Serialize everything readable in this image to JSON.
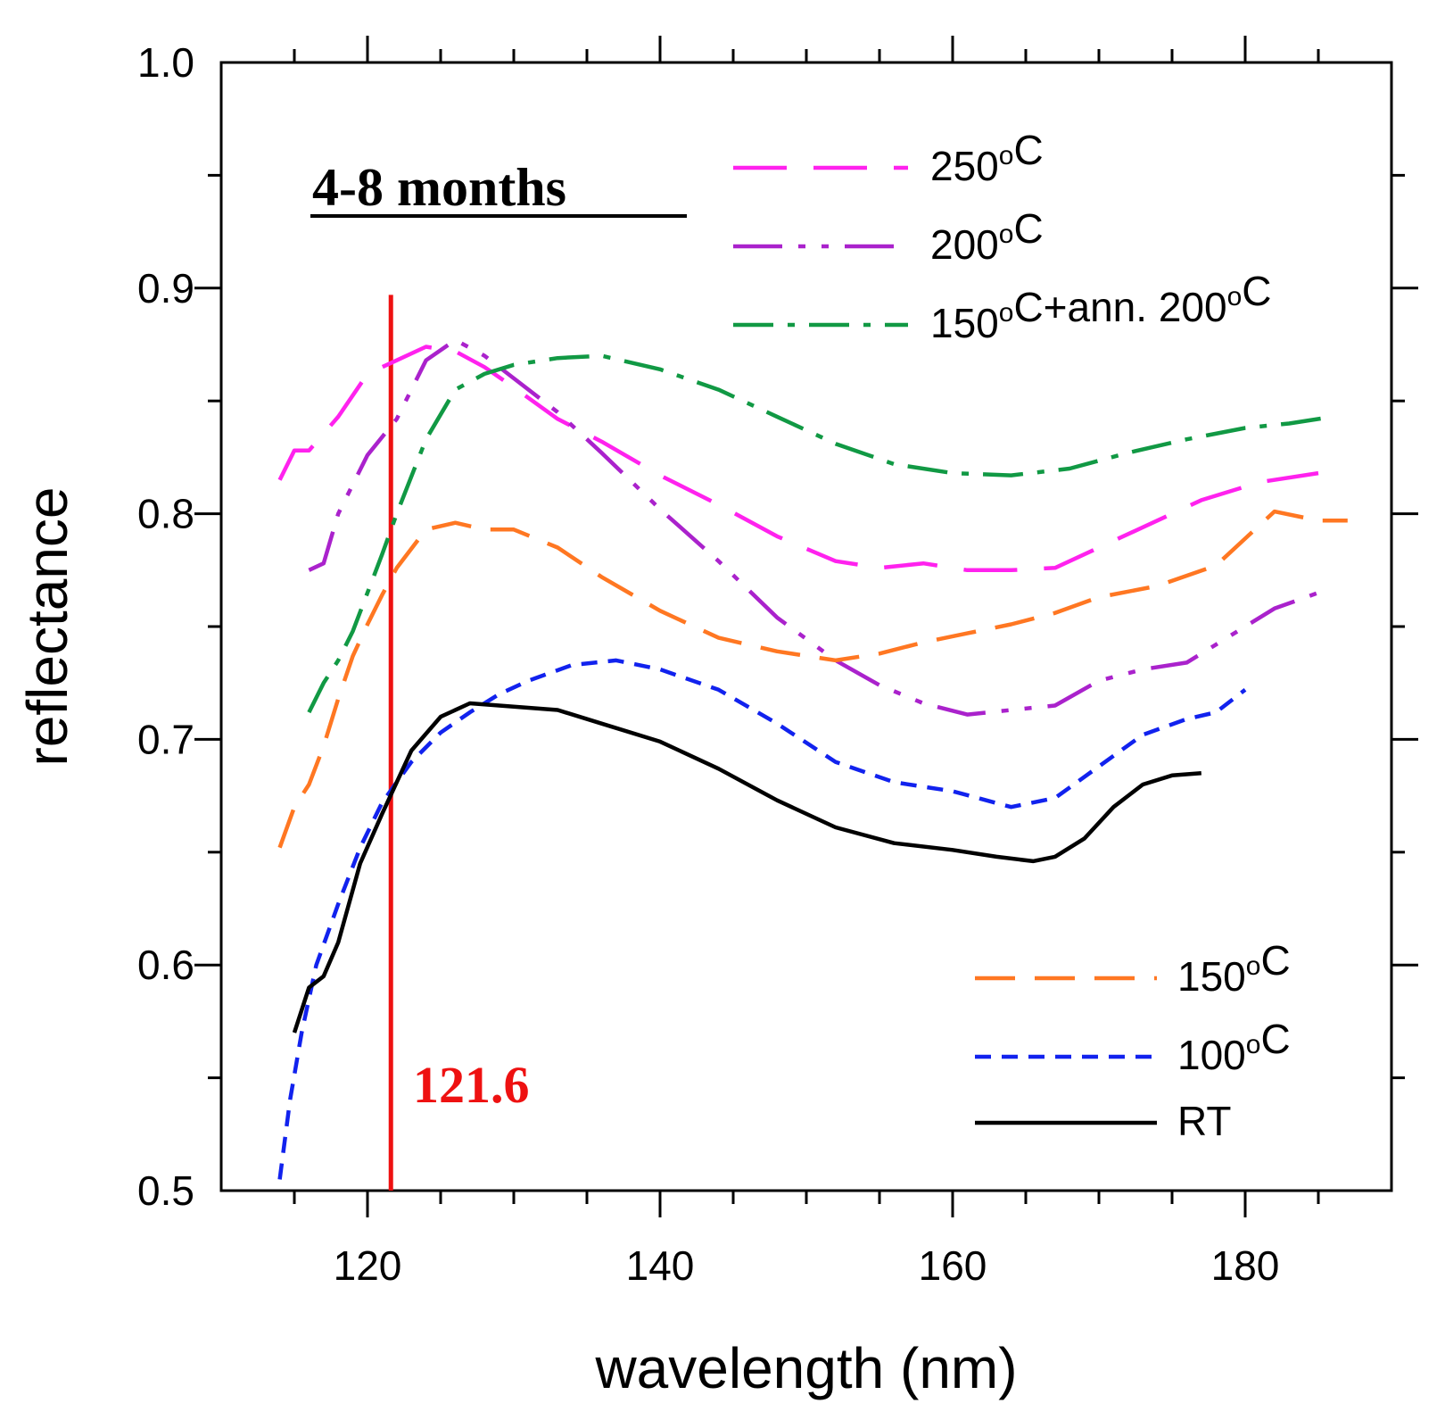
{
  "chart_data": {
    "type": "line",
    "title": "",
    "xlabel": "wavelength (nm)",
    "ylabel": "reflectance",
    "xlim": [
      110,
      190
    ],
    "ylim": [
      0.5,
      1.0
    ],
    "x_ticks": [
      120,
      140,
      160,
      180
    ],
    "y_ticks": [
      0.5,
      0.6,
      0.7,
      0.8,
      0.9,
      1.0
    ],
    "x_tick_labels": [
      "120",
      "140",
      "160",
      "180"
    ],
    "y_tick_labels": [
      "0.5",
      "0.6",
      "0.7",
      "0.8",
      "0.9",
      "1.0"
    ],
    "annotation": "4-8 months",
    "marker": {
      "x": 121.6,
      "label": "121.6",
      "color": "#ee1111",
      "y_top": 0.897
    },
    "series": [
      {
        "name": "250",
        "legend_main": "250",
        "legend_sup": "o",
        "legend_tail": "C",
        "color": "#ff22ee",
        "dash": "60,30",
        "x": [
          114,
          115,
          116,
          118,
          120,
          122,
          124,
          126,
          128,
          130,
          133,
          136,
          140,
          144,
          148,
          152,
          155,
          158,
          161,
          164,
          167,
          170,
          173,
          177,
          181,
          185
        ],
        "y": [
          0.815,
          0.828,
          0.828,
          0.843,
          0.862,
          0.868,
          0.874,
          0.872,
          0.865,
          0.856,
          0.842,
          0.832,
          0.817,
          0.804,
          0.79,
          0.779,
          0.776,
          0.778,
          0.775,
          0.775,
          0.776,
          0.785,
          0.794,
          0.806,
          0.814,
          0.818
        ]
      },
      {
        "name": "200",
        "legend_main": "200",
        "legend_sup": "o",
        "legend_tail": "C",
        "color": "#aa22cc",
        "dash": "55,18,8,18,8,18",
        "x": [
          116,
          117,
          118,
          120,
          122,
          124,
          126,
          128,
          130,
          133,
          136,
          140,
          144,
          148,
          152,
          155,
          158,
          161,
          164,
          167,
          170,
          173,
          176,
          179,
          182,
          185
        ],
        "y": [
          0.775,
          0.778,
          0.8,
          0.826,
          0.842,
          0.868,
          0.877,
          0.87,
          0.86,
          0.845,
          0.827,
          0.802,
          0.779,
          0.754,
          0.735,
          0.724,
          0.716,
          0.711,
          0.713,
          0.715,
          0.726,
          0.731,
          0.734,
          0.746,
          0.758,
          0.765
        ]
      },
      {
        "name": "150+ann",
        "legend_main": "150",
        "legend_sup": "o",
        "legend_tail": "C+ann. 200",
        "legend_sup2": "o",
        "legend_tail2": "C",
        "color": "#119944",
        "dash": "45,16,8,16",
        "x": [
          116,
          117,
          118,
          119,
          120,
          121,
          122,
          124,
          126,
          128,
          130,
          133,
          136,
          140,
          144,
          148,
          152,
          156,
          160,
          164,
          168,
          172,
          176,
          180,
          183,
          186
        ],
        "y": [
          0.712,
          0.725,
          0.735,
          0.748,
          0.765,
          0.782,
          0.8,
          0.833,
          0.855,
          0.862,
          0.866,
          0.869,
          0.87,
          0.864,
          0.855,
          0.843,
          0.831,
          0.822,
          0.818,
          0.817,
          0.82,
          0.827,
          0.833,
          0.838,
          0.84,
          0.843
        ]
      },
      {
        "name": "150",
        "legend_main": "150",
        "legend_sup": "o",
        "legend_tail": "C",
        "color": "#ff7722",
        "dash": "45,22",
        "x": [
          114,
          115,
          116,
          117,
          118,
          119,
          120,
          121,
          122,
          124,
          126,
          128,
          130,
          133,
          136,
          140,
          144,
          148,
          152,
          155,
          158,
          161,
          164,
          167,
          170,
          174,
          178,
          180,
          182,
          185,
          187
        ],
        "y": [
          0.652,
          0.67,
          0.68,
          0.697,
          0.718,
          0.737,
          0.751,
          0.764,
          0.776,
          0.793,
          0.796,
          0.793,
          0.793,
          0.785,
          0.772,
          0.757,
          0.745,
          0.739,
          0.735,
          0.738,
          0.743,
          0.747,
          0.751,
          0.756,
          0.763,
          0.768,
          0.777,
          0.789,
          0.801,
          0.797,
          0.797
        ]
      },
      {
        "name": "100",
        "legend_main": "100",
        "legend_sup": "o",
        "legend_tail": "C",
        "color": "#1122ee",
        "dash": "18,12",
        "x": [
          114,
          114.7,
          115.5,
          116.5,
          118,
          119.5,
          121,
          123,
          125,
          127,
          129,
          131,
          134,
          137,
          140,
          144,
          148,
          152,
          156,
          160,
          164,
          167,
          170,
          173,
          176,
          178,
          180
        ],
        "y": [
          0.505,
          0.54,
          0.57,
          0.6,
          0.627,
          0.652,
          0.672,
          0.69,
          0.703,
          0.712,
          0.72,
          0.726,
          0.733,
          0.735,
          0.731,
          0.722,
          0.707,
          0.69,
          0.681,
          0.677,
          0.67,
          0.674,
          0.688,
          0.702,
          0.709,
          0.712,
          0.722
        ]
      },
      {
        "name": "RT",
        "legend_main": "RT",
        "legend_sup": "",
        "legend_tail": "",
        "color": "#000000",
        "dash": "",
        "x": [
          115,
          116,
          117,
          118,
          119.5,
          121,
          123,
          125,
          127,
          129,
          131,
          133,
          136,
          140,
          144,
          148,
          152,
          156,
          160,
          163,
          165.5,
          167,
          169,
          171,
          173,
          175,
          177
        ],
        "y": [
          0.57,
          0.59,
          0.595,
          0.61,
          0.645,
          0.667,
          0.695,
          0.71,
          0.716,
          0.715,
          0.714,
          0.713,
          0.707,
          0.699,
          0.687,
          0.673,
          0.661,
          0.654,
          0.651,
          0.648,
          0.646,
          0.648,
          0.656,
          0.67,
          0.68,
          0.684,
          0.685
        ]
      }
    ]
  }
}
